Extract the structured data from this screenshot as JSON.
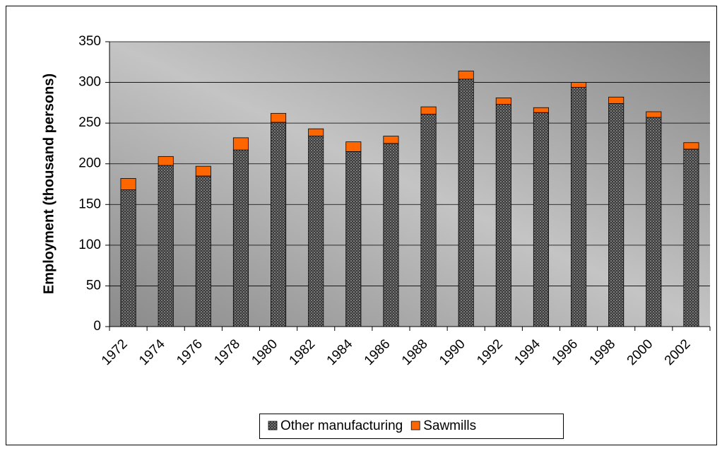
{
  "chart_data": {
    "type": "bar",
    "stacked": true,
    "y_label": "Employment (thousand persons)",
    "categories": [
      "1972",
      "1974",
      "1976",
      "1978",
      "1980",
      "1982",
      "1984",
      "1986",
      "1988",
      "1990",
      "1992",
      "1994",
      "1996",
      "1998",
      "2000",
      "2002"
    ],
    "series": [
      {
        "name": "Other manufacturing",
        "color": "#3a3a3a",
        "values": [
          168,
          198,
          185,
          217,
          251,
          234,
          215,
          225,
          261,
          304,
          273,
          263,
          294,
          274,
          257,
          218
        ]
      },
      {
        "name": "Sawmills",
        "color": "#ff6600",
        "values": [
          14,
          11,
          12,
          15,
          11,
          9,
          12,
          9,
          9,
          10,
          8,
          6,
          6,
          8,
          7,
          8
        ]
      }
    ],
    "ylim": [
      0,
      350
    ],
    "yticks": [
      0,
      50,
      100,
      150,
      200,
      250,
      300,
      350
    ],
    "grid": true,
    "legend": "bottom"
  }
}
